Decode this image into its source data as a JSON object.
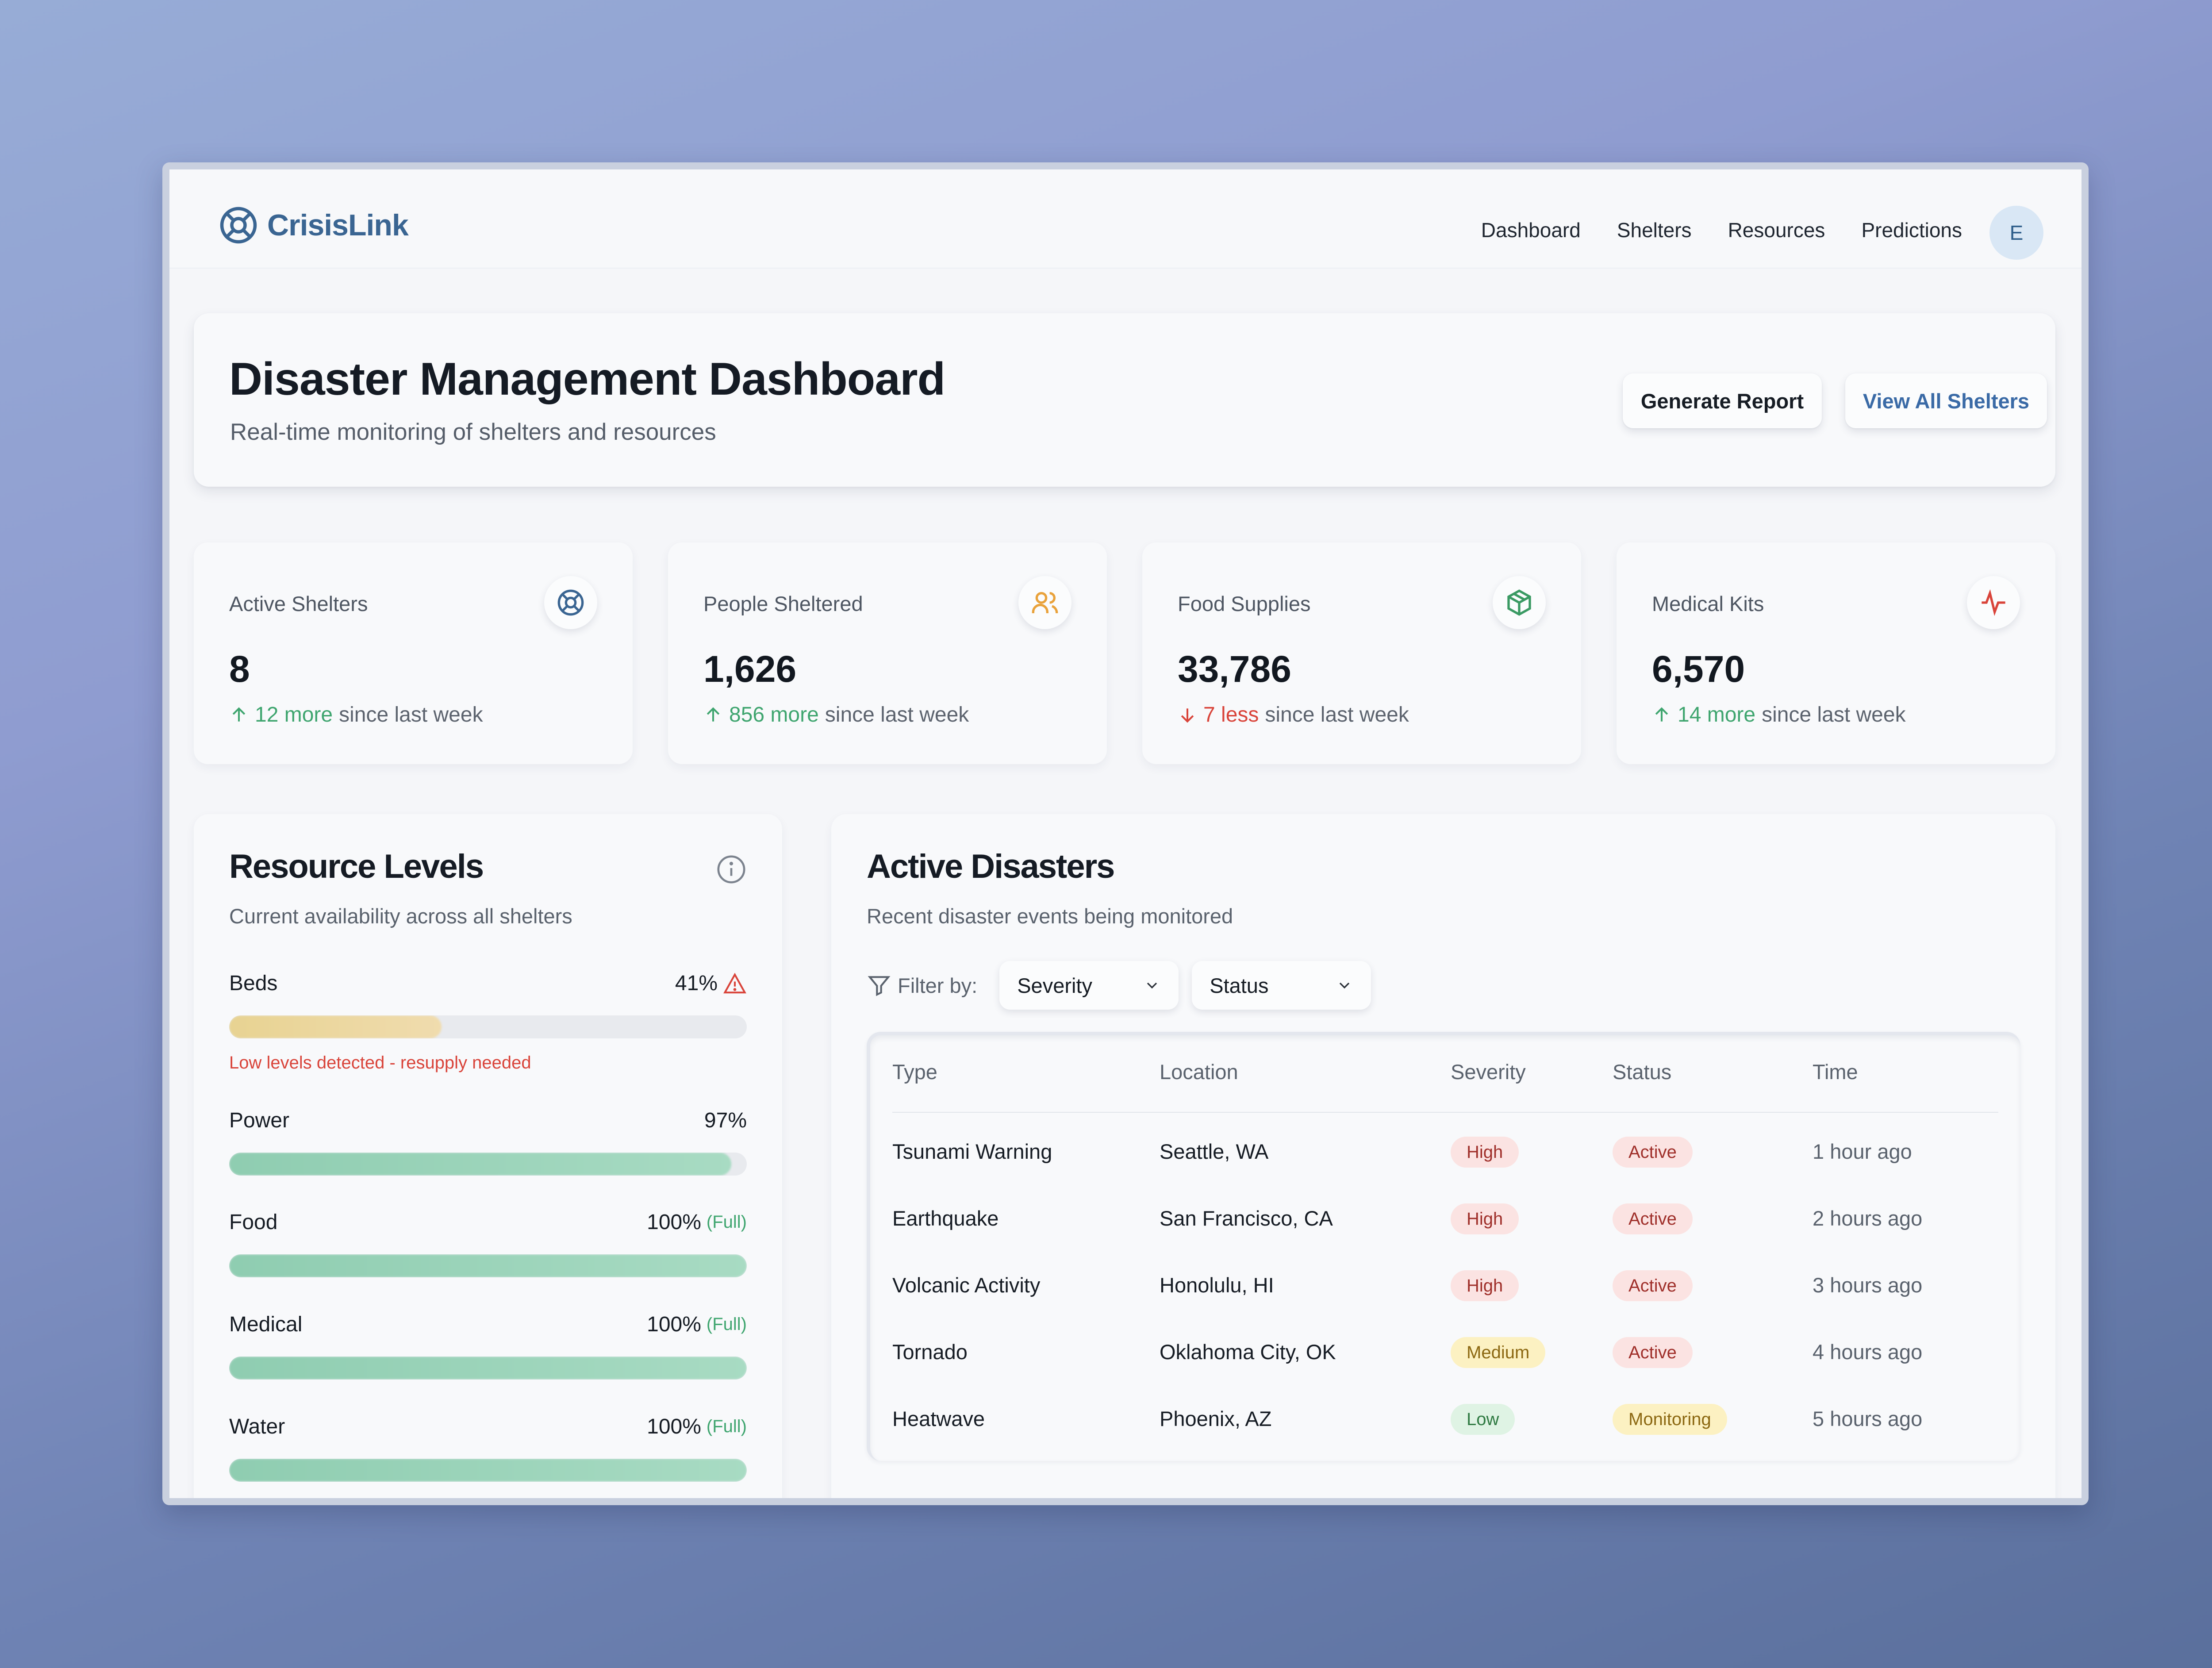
{
  "app": {
    "name": "CrisisLink",
    "nav": [
      "Dashboard",
      "Shelters",
      "Resources",
      "Predictions"
    ],
    "avatar_initial": "E"
  },
  "hero": {
    "title": "Disaster Management Dashboard",
    "subtitle": "Real-time monitoring of shelters and resources",
    "btn_report": "Generate Report",
    "btn_shelters": "View All Shelters"
  },
  "stats": [
    {
      "label": "Active Shelters",
      "value": "8",
      "change": "12 more",
      "suffix": "since last week",
      "direction": "up",
      "icon": "lifebuoy-icon"
    },
    {
      "label": "People Sheltered",
      "value": "1,626",
      "change": "856 more",
      "suffix": "since last week",
      "direction": "up",
      "icon": "users-icon"
    },
    {
      "label": "Food Supplies",
      "value": "33,786",
      "change": "7 less",
      "suffix": "since last week",
      "direction": "down",
      "icon": "package-icon"
    },
    {
      "label": "Medical Kits",
      "value": "6,570",
      "change": "14 more",
      "suffix": "since last week",
      "direction": "up",
      "icon": "activity-icon"
    }
  ],
  "resources": {
    "title": "Resource Levels",
    "subtitle": "Current availability across all shelters",
    "items": [
      {
        "name": "Beds",
        "value": "41%",
        "level": 0.41,
        "status": "low",
        "warning": "Low levels detected - resupply needed"
      },
      {
        "name": "Power",
        "value": "97%",
        "level": 0.97,
        "status": "ok"
      },
      {
        "name": "Food",
        "value": "100%",
        "full": "(Full)",
        "level": 1.0,
        "status": "full"
      },
      {
        "name": "Medical",
        "value": "100%",
        "full": "(Full)",
        "level": 1.0,
        "status": "full"
      },
      {
        "name": "Water",
        "value": "100%",
        "full": "(Full)",
        "level": 1.0,
        "status": "full"
      }
    ]
  },
  "disasters": {
    "title": "Active Disasters",
    "subtitle": "Recent disaster events being monitored",
    "filter_label": "Filter by:",
    "filters": [
      "Severity",
      "Status"
    ],
    "columns": [
      "Type",
      "Location",
      "Severity",
      "Status",
      "Time"
    ],
    "rows": [
      {
        "type": "Tsunami Warning",
        "location": "Seattle, WA",
        "severity": "High",
        "status": "Active",
        "time": "1 hour ago"
      },
      {
        "type": "Earthquake",
        "location": "San Francisco, CA",
        "severity": "High",
        "status": "Active",
        "time": "2 hours ago"
      },
      {
        "type": "Volcanic Activity",
        "location": "Honolulu, HI",
        "severity": "High",
        "status": "Active",
        "time": "3 hours ago"
      },
      {
        "type": "Tornado",
        "location": "Oklahoma City, OK",
        "severity": "Medium",
        "status": "Active",
        "time": "4 hours ago"
      },
      {
        "type": "Heatwave",
        "location": "Phoenix, AZ",
        "severity": "Low",
        "status": "Monitoring",
        "time": "5 hours ago"
      }
    ]
  },
  "colors": {
    "brand": "#3a6592",
    "up": "#3fa56f",
    "down": "#d9443a",
    "link": "#3a6aa6"
  }
}
